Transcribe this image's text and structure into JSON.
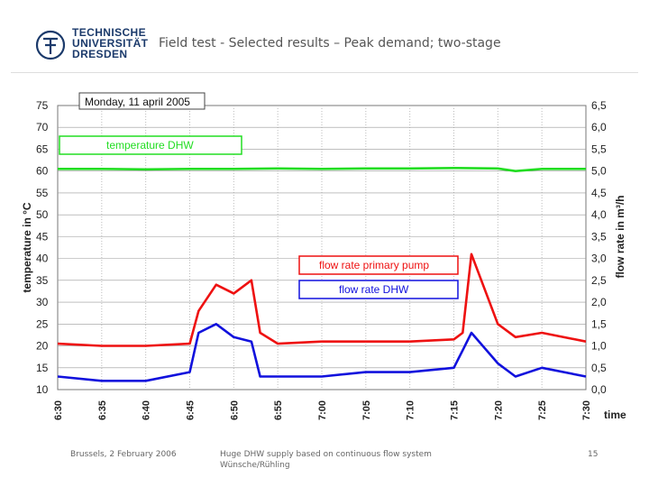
{
  "header": {
    "logo_lines": [
      "TECHNISCHE",
      "UNIVERSITÄT",
      "DRESDEN"
    ],
    "title": "Field test - Selected results – Peak demand; two-stage"
  },
  "chart_data": {
    "type": "line",
    "date_label": "Monday, 11 april 2005",
    "ylabel_left": "temperature in °C",
    "ylabel_right": "flow rate in m³/h",
    "xlabel": "time",
    "x_ticks": [
      "6:30",
      "6:35",
      "6:40",
      "6:45",
      "6:50",
      "6:55",
      "7:00",
      "7:05",
      "7:10",
      "7:15",
      "7:20",
      "7:25",
      "7:30"
    ],
    "y_left_ticks": [
      "75",
      "70",
      "65",
      "60",
      "55",
      "50",
      "45",
      "40",
      "35",
      "30",
      "25",
      "20",
      "15",
      "10"
    ],
    "y_right_ticks": [
      "6,5",
      "6,0",
      "5,5",
      "5,0",
      "4,5",
      "4,0",
      "3,5",
      "3,0",
      "2,5",
      "2,0",
      "1,5",
      "1,0",
      "0,5",
      "0,0"
    ],
    "ylim_left": [
      10,
      75
    ],
    "ylim_right": [
      0,
      6.5
    ],
    "grid": true,
    "series": [
      {
        "name": "temperature DHW",
        "axis": "left",
        "color": "#22dd22",
        "x": [
          "6:30",
          "6:35",
          "6:40",
          "6:45",
          "6:50",
          "6:55",
          "7:00",
          "7:05",
          "7:10",
          "7:15",
          "7:20",
          "7:22",
          "7:25",
          "7:30"
        ],
        "y": [
          60.5,
          60.5,
          60.4,
          60.5,
          60.5,
          60.6,
          60.5,
          60.6,
          60.6,
          60.7,
          60.6,
          60.0,
          60.5,
          60.5
        ]
      },
      {
        "name": "flow rate primary pump",
        "axis": "right",
        "color": "#ee1111",
        "x": [
          "6:30",
          "6:35",
          "6:40",
          "6:45",
          "6:46",
          "6:48",
          "6:50",
          "6:52",
          "6:53",
          "6:55",
          "7:00",
          "7:05",
          "7:10",
          "7:15",
          "7:16",
          "7:17",
          "7:20",
          "7:22",
          "7:25",
          "7:30"
        ],
        "y": [
          1.05,
          1.0,
          1.0,
          1.05,
          1.8,
          2.4,
          2.2,
          2.5,
          1.3,
          1.05,
          1.1,
          1.1,
          1.1,
          1.15,
          1.3,
          3.1,
          1.5,
          1.2,
          1.3,
          1.1
        ]
      },
      {
        "name": "flow rate DHW",
        "axis": "right",
        "color": "#1111dd",
        "x": [
          "6:30",
          "6:35",
          "6:40",
          "6:45",
          "6:46",
          "6:48",
          "6:50",
          "6:52",
          "6:53",
          "6:55",
          "7:00",
          "7:05",
          "7:10",
          "7:15",
          "7:16",
          "7:17",
          "7:20",
          "7:22",
          "7:25",
          "7:30"
        ],
        "y": [
          0.3,
          0.2,
          0.2,
          0.4,
          1.3,
          1.5,
          1.2,
          1.1,
          0.3,
          0.3,
          0.3,
          0.4,
          0.4,
          0.5,
          0.9,
          1.3,
          0.6,
          0.3,
          0.5,
          0.3
        ]
      }
    ]
  },
  "footer": {
    "left": "Brussels, 2 February 2006",
    "center_line1": "Huge DHW supply based on continuous flow system",
    "center_line2": "Wünsche/Rühling",
    "page": "15"
  }
}
